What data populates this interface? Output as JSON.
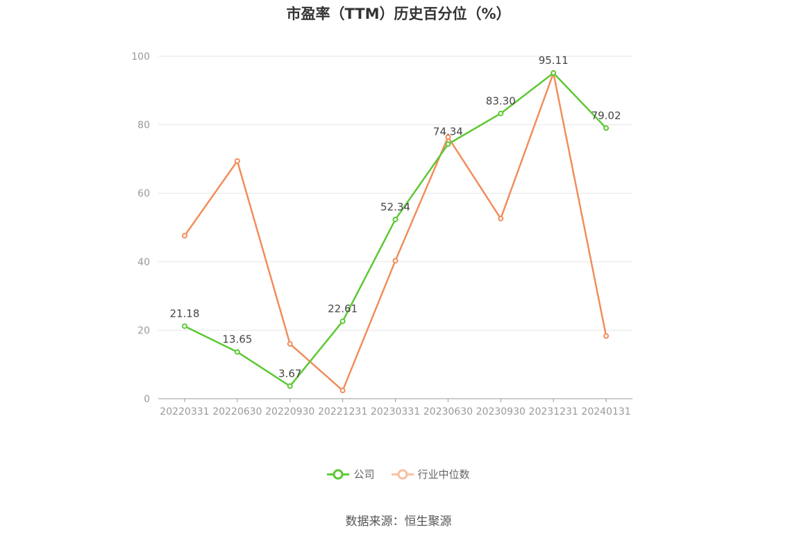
{
  "chart_data": {
    "type": "line",
    "title": "市盈率（TTM）历史百分位（%）",
    "categories": [
      "20220331",
      "20220630",
      "20220930",
      "20221231",
      "20230331",
      "20230630",
      "20230930",
      "20231231",
      "20240131"
    ],
    "ylim": [
      0,
      100
    ],
    "yticks": [
      0,
      20,
      40,
      60,
      80,
      100
    ],
    "grid": true,
    "legend_position": "bottom",
    "series": [
      {
        "name": "公司",
        "color": "#5cc832",
        "values": [
          21.18,
          13.65,
          3.67,
          22.61,
          52.34,
          74.34,
          83.3,
          95.11,
          79.02
        ],
        "labels": [
          "21.18",
          "13.65",
          "3.67",
          "22.61",
          "52.34",
          "74.34",
          "83.30",
          "95.11",
          "79.02"
        ]
      },
      {
        "name": "行业中位数",
        "color": "#f28c5a",
        "values": [
          47.6,
          69.4,
          16.0,
          2.4,
          40.3,
          76.4,
          52.6,
          95.1,
          18.3
        ]
      }
    ]
  },
  "source": "数据来源：恒生聚源"
}
